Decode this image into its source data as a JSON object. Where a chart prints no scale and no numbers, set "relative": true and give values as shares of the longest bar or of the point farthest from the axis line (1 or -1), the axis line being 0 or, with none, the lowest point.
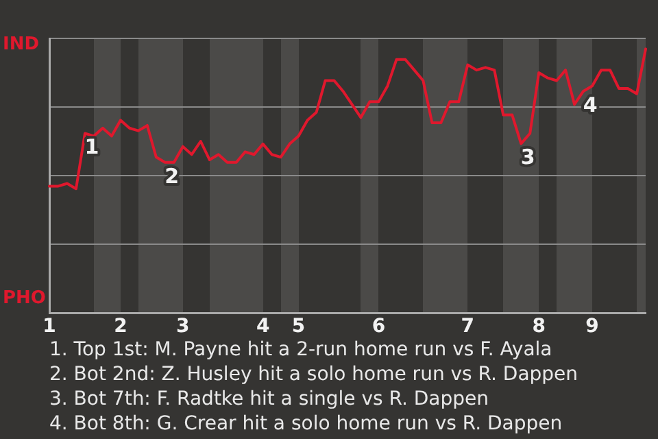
{
  "chart_data": {
    "type": "line",
    "relative": true,
    "categories": [
      "1",
      null,
      null,
      null,
      null,
      null,
      null,
      null,
      "2",
      null,
      null,
      null,
      null,
      null,
      null,
      "3",
      null,
      null,
      null,
      null,
      null,
      null,
      null,
      null,
      "4",
      null,
      null,
      null,
      "5",
      null,
      null,
      null,
      null,
      null,
      null,
      null,
      null,
      "6",
      null,
      null,
      null,
      null,
      null,
      null,
      null,
      null,
      null,
      "7",
      null,
      null,
      null,
      null,
      null,
      null,
      null,
      "8",
      null,
      null,
      null,
      null,
      null,
      "9",
      null,
      null,
      null,
      null,
      null,
      null
    ],
    "grid": "y",
    "legend": false,
    "marker": "none",
    "line_style": "solid",
    "series": [
      {
        "color": "#e0182d",
        "values": [
          0.48,
          0.48,
          0.49,
          0.47,
          0.68,
          0.67,
          0.7,
          0.67,
          0.73,
          0.7,
          0.69,
          0.71,
          0.59,
          0.57,
          0.57,
          0.63,
          0.6,
          0.65,
          0.58,
          0.6,
          0.57,
          0.57,
          0.61,
          0.6,
          0.64,
          0.6,
          0.59,
          0.64,
          0.67,
          0.73,
          0.76,
          0.88,
          0.88,
          0.84,
          0.79,
          0.74,
          0.8,
          0.8,
          0.86,
          0.96,
          0.96,
          0.92,
          0.88,
          0.72,
          0.72,
          0.8,
          0.8,
          0.94,
          0.92,
          0.93,
          0.92,
          0.75,
          0.75,
          0.641,
          0.68,
          0.91,
          0.89,
          0.88,
          0.92,
          0.79,
          0.84,
          0.86,
          0.92,
          0.92,
          0.85,
          0.85,
          0.83,
          1
        ]
      }
    ],
    "annotations": [
      "IND",
      "PHO",
      {
        "text": "1",
        "y": 0.68
      },
      {
        "text": "2",
        "y": 0.57
      },
      {
        "text": "3",
        "y": 0.641
      },
      {
        "text": "4",
        "y": 0.84
      },
      "1. Top 1st: M. Payne hit a 2-run home run vs F. Ayala",
      "2. Bot 2nd: Z. Husley hit a solo home run vs R. Dappen",
      "3. Bot 7th: F. Radtke hit a single vs R. Dappen",
      "4. Bot 8th: G. Crear hit a solo home run vs R. Dappen"
    ]
  }
}
